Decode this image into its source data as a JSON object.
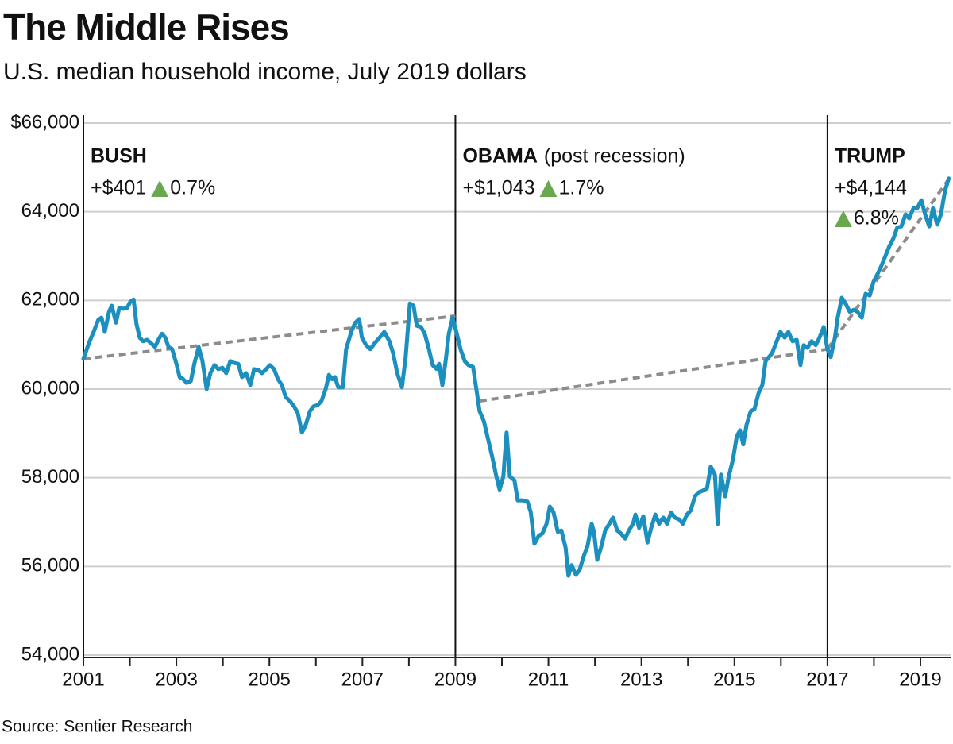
{
  "chart_data": {
    "type": "line",
    "title": "The Middle Rises",
    "subtitle": "U.S. median household income, July 2019 dollars",
    "source": "Source: Sentier Research",
    "xlim": [
      2001,
      2019.62
    ],
    "ylim": [
      54000,
      66000
    ],
    "xticks": [
      2001,
      2003,
      2005,
      2007,
      2009,
      2011,
      2013,
      2015,
      2017,
      2019
    ],
    "xminor_ticks": [
      2002,
      2004,
      2006,
      2008,
      2010,
      2012,
      2014,
      2016,
      2018
    ],
    "yticks": [
      {
        "value": 54000,
        "label": "54,000"
      },
      {
        "value": 56000,
        "label": "56,000"
      },
      {
        "value": 58000,
        "label": "58,000"
      },
      {
        "value": 60000,
        "label": "60,000"
      },
      {
        "value": 62000,
        "label": "62,000"
      },
      {
        "value": 64000,
        "label": "64,000"
      },
      {
        "value": 66000,
        "label": "$66,000"
      }
    ],
    "grid": true,
    "dividers": [
      2001,
      2009,
      2017
    ],
    "annotations": [
      {
        "label": "BUSH",
        "change": "+$401",
        "percent": "0.7%"
      },
      {
        "label": "OBAMA",
        "sublabel": "(post recession)",
        "change": "+$1,043",
        "percent": "1.7%"
      },
      {
        "label": "TRUMP",
        "change": "+$4,144",
        "percent": "6.8%"
      }
    ],
    "trend_color": "#8c8c8c",
    "trend_lines": [
      {
        "x": [
          2001,
          2009.0
        ],
        "values": [
          60680,
          61650
        ]
      },
      {
        "x": [
          2009.52,
          2017.0
        ],
        "values": [
          59730,
          60900
        ]
      },
      {
        "x": [
          2017.0,
          2019.62
        ],
        "values": [
          60900,
          64750
        ]
      }
    ],
    "series": [
      {
        "color": "#1b8fbd",
        "x": [
          2001.0,
          2001.12,
          2001.22,
          2001.32,
          2001.39,
          2001.46,
          2001.55,
          2001.61,
          2001.7,
          2001.77,
          2001.85,
          2001.94,
          2002.01,
          2002.08,
          2002.14,
          2002.21,
          2002.28,
          2002.37,
          2002.45,
          2002.54,
          2002.62,
          2002.69,
          2002.76,
          2002.83,
          2002.91,
          2003.0,
          2003.07,
          2003.14,
          2003.22,
          2003.31,
          2003.39,
          2003.48,
          2003.56,
          2003.65,
          2003.73,
          2003.82,
          2003.9,
          2003.99,
          2004.07,
          2004.16,
          2004.24,
          2004.33,
          2004.41,
          2004.5,
          2004.59,
          2004.67,
          2004.76,
          2004.84,
          2004.93,
          2005.01,
          2005.1,
          2005.18,
          2005.27,
          2005.35,
          2005.44,
          2005.53,
          2005.61,
          2005.7,
          2005.78,
          2005.87,
          2005.95,
          2006.04,
          2006.12,
          2006.21,
          2006.28,
          2006.35,
          2006.41,
          2006.48,
          2006.58,
          2006.65,
          2006.76,
          2006.84,
          2006.93,
          2006.99,
          2007.08,
          2007.17,
          2007.27,
          2007.37,
          2007.47,
          2007.58,
          2007.66,
          2007.75,
          2007.85,
          2007.93,
          2008.02,
          2008.1,
          2008.17,
          2008.26,
          2008.34,
          2008.43,
          2008.51,
          2008.6,
          2008.65,
          2008.72,
          2008.79,
          2008.86,
          2008.94,
          2009.03,
          2009.11,
          2009.2,
          2009.28,
          2009.38,
          2009.45,
          2009.52,
          2009.61,
          2009.69,
          2009.79,
          2009.88,
          2009.95,
          2010.03,
          2010.1,
          2010.17,
          2010.27,
          2010.34,
          2010.44,
          2010.55,
          2010.62,
          2010.7,
          2010.79,
          2010.87,
          2010.96,
          2011.03,
          2011.11,
          2011.2,
          2011.28,
          2011.37,
          2011.43,
          2011.5,
          2011.59,
          2011.67,
          2011.76,
          2011.84,
          2011.93,
          2011.98,
          2012.05,
          2012.13,
          2012.22,
          2012.31,
          2012.39,
          2012.48,
          2012.56,
          2012.65,
          2012.73,
          2012.82,
          2012.87,
          2012.95,
          2013.04,
          2013.13,
          2013.21,
          2013.3,
          2013.38,
          2013.47,
          2013.55,
          2013.64,
          2013.72,
          2013.81,
          2013.89,
          2013.98,
          2014.06,
          2014.15,
          2014.23,
          2014.32,
          2014.41,
          2014.49,
          2014.58,
          2014.64,
          2014.71,
          2014.8,
          2014.88,
          2014.97,
          2015.05,
          2015.12,
          2015.19,
          2015.26,
          2015.35,
          2015.43,
          2015.52,
          2015.6,
          2015.67,
          2015.74,
          2015.81,
          2015.91,
          2015.99,
          2016.08,
          2016.16,
          2016.25,
          2016.34,
          2016.42,
          2016.49,
          2016.57,
          2016.66,
          2016.75,
          2016.83,
          2016.92,
          2017.0,
          2017.07,
          2017.16,
          2017.22,
          2017.31,
          2017.39,
          2017.48,
          2017.57,
          2017.65,
          2017.74,
          2017.82,
          2017.91,
          2017.99,
          2018.08,
          2018.16,
          2018.25,
          2018.33,
          2018.42,
          2018.5,
          2018.59,
          2018.68,
          2018.76,
          2018.85,
          2018.93,
          2019.02,
          2019.1,
          2019.19,
          2019.27,
          2019.36,
          2019.44,
          2019.53,
          2019.61
        ],
        "values": [
          60680,
          61040,
          61290,
          61560,
          61610,
          61290,
          61740,
          61880,
          61500,
          61830,
          61810,
          61830,
          61970,
          62020,
          61470,
          61160,
          61080,
          61110,
          61040,
          60950,
          61130,
          61250,
          61160,
          60950,
          60900,
          60570,
          60270,
          60230,
          60140,
          60180,
          60590,
          60950,
          60630,
          60000,
          60360,
          60540,
          60450,
          60480,
          60360,
          60630,
          60590,
          60570,
          60270,
          60360,
          60090,
          60450,
          60430,
          60360,
          60450,
          60540,
          60450,
          60230,
          60090,
          59820,
          59730,
          59610,
          59460,
          59020,
          59190,
          59500,
          59610,
          59640,
          59730,
          60000,
          60320,
          60220,
          60270,
          60040,
          60040,
          60900,
          61290,
          61490,
          61580,
          61160,
          60990,
          60900,
          61040,
          61160,
          61290,
          61080,
          60810,
          60360,
          60040,
          60720,
          61930,
          61880,
          61430,
          61400,
          61250,
          60900,
          60540,
          60450,
          60570,
          60090,
          60630,
          61250,
          61610,
          61250,
          60900,
          60630,
          60540,
          60500,
          60000,
          59500,
          59280,
          58930,
          58480,
          58030,
          57730,
          58030,
          59020,
          58030,
          57940,
          57490,
          57490,
          57460,
          57220,
          56510,
          56690,
          56740,
          56960,
          57350,
          57220,
          56780,
          56810,
          56420,
          55790,
          56030,
          55810,
          55920,
          56240,
          56450,
          56960,
          56780,
          56150,
          56420,
          56810,
          56960,
          57100,
          56810,
          56740,
          56630,
          56810,
          56960,
          57170,
          56870,
          57130,
          56540,
          56870,
          57170,
          56960,
          57100,
          56960,
          57220,
          57100,
          57060,
          56960,
          57170,
          57260,
          57580,
          57670,
          57710,
          57760,
          58250,
          58070,
          56960,
          58070,
          57580,
          58030,
          58420,
          58930,
          59070,
          58750,
          59190,
          59500,
          59550,
          59910,
          60090,
          60630,
          60720,
          60810,
          61080,
          61290,
          61160,
          61290,
          61080,
          61110,
          60540,
          60990,
          60930,
          61080,
          60990,
          61160,
          61400,
          60900,
          60720,
          61160,
          61610,
          62060,
          61930,
          61740,
          61790,
          61740,
          61610,
          62150,
          62110,
          62420,
          62600,
          62780,
          63010,
          63220,
          63400,
          63640,
          63670,
          63940,
          63850,
          64080,
          64080,
          64260,
          63940,
          63670,
          64080,
          63710,
          63940,
          64480,
          64750
        ]
      }
    ],
    "marker_color": "#6aa84f"
  }
}
